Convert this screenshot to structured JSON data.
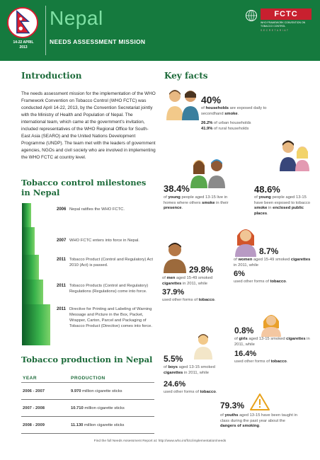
{
  "header": {
    "title": "Nepal",
    "subtitle": "NEEDS ASSESSMENT MISSION",
    "date_line1": "14-22 APRIL",
    "date_line2": "2013",
    "fctc_logo": "FCTC",
    "fctc_sub": "WHO FRAMEWORK CONVENTION ON TOBACCO CONTROL",
    "fctc_sec": "SECRETARIAT",
    "colors": {
      "brand_green": "#157a3e",
      "title_green": "#7fe0a4",
      "fctc_red": "#c8202f"
    }
  },
  "intro": {
    "heading": "Introduction",
    "text": "The needs assessment mission for the implementation of the WHO Framework Convention on Tobacco Control (WHO FCTC) was conducted April 14-22, 2013, by the Convention Secretariat jointly with the Ministry of Health and Population of Nepal. The international team, which came at the government's invitation, included representatives of the WHO Regional Office for South-East Asia (SEARO) and the United Nations Development Programme (UNDP). The team met with the leaders of government agencies, NGOs and civil society who are involved in implementing the WHO FCTC at country level."
  },
  "milestones": {
    "heading": "Tobacco control milestones in Nepal",
    "items": [
      {
        "year": "2006",
        "text": "Nepal ratifies the WHO FCTC."
      },
      {
        "year": "2007",
        "text": "WHO FCTC enters into force in Nepal."
      },
      {
        "year": "2011",
        "text": "Tobacco Product (Control and Regulatory) Act 2010 (Act) is passed."
      },
      {
        "year": "2011",
        "text": "Tobacco Products (Control and Regulatory) Regulations (Regulations) come into force."
      },
      {
        "year": "2011",
        "text": "Directive for Printing and Labeling of Warning Message and Picture in the Box, Packet, Wrapper, Carton, Parcel and Packaging of Tobacco Product (Directive) comes into force."
      }
    ]
  },
  "production": {
    "heading": "Tobacco production in Nepal",
    "col_year": "YEAR",
    "col_production": "PRODUCTION",
    "rows": [
      {
        "year": "2006 - 2007",
        "value": "9.970",
        "unit": "million cigarette sticks"
      },
      {
        "year": "2007 - 2008",
        "value": "10.710",
        "unit": "million cigarette sticks"
      },
      {
        "year": "2008 - 2009",
        "value": "11.130",
        "unit": "million cigarette sticks"
      }
    ]
  },
  "keyfacts": {
    "heading": "Key facts",
    "f1": {
      "value": "40%",
      "pre": "of ",
      "bold": "households",
      "post": " are exposed daily to secondhand ",
      "bold2": "smoke",
      "end": ".",
      "line2a": "26.2%",
      "line2b": " of urban households",
      "line3a": "41.9%",
      "line3b": " of rural households"
    },
    "f2": {
      "value": "48.6%",
      "text_a": "of ",
      "bold_a": "young",
      "text_b": " people aged 13-15 have been exposed to tobacco ",
      "bold_b": "smoke",
      "text_c": " in ",
      "bold_c": "enclosed public places",
      "end": "."
    },
    "f3": {
      "value": "38.4%",
      "text_a": "of ",
      "bold_a": "young",
      "text_b": " people aged 13-15 live in homes where others ",
      "bold_b": "smoke",
      "text_c": " in their ",
      "bold_c": "presence",
      "end": "."
    },
    "f4": {
      "value": "8.7%",
      "text_a": "of ",
      "bold_a": "women",
      "text_b": " aged 15-49 smoked ",
      "bold_b": "cigarettes",
      "text_c": " in 2011, while",
      "value2": "6%",
      "text2": "used other forms of ",
      "bold2": "tobacco",
      "end": "."
    },
    "f5": {
      "value": "29.8%",
      "text_a": "of ",
      "bold_a": "men",
      "text_b": " aged 15-49 smoked ",
      "bold_b": "cigarettes",
      "text_c": " in 2011, while",
      "value2": "37.9%",
      "text2": "used other forms of ",
      "bold2": "tobacco",
      "end": "."
    },
    "f6": {
      "value": "0.8%",
      "text_a": "of ",
      "bold_a": "girls",
      "text_b": " aged 13-15 smoked ",
      "bold_b": "cigarettes",
      "text_c": " in 2011, while",
      "value2": "16.4%",
      "text2": "used other forms of ",
      "bold2": "tobacco",
      "end": "."
    },
    "f7": {
      "value": "5.5%",
      "text_a": "of ",
      "bold_a": "boys",
      "text_b": " aged 13-15 smoked ",
      "bold_b": "cigarettes",
      "text_c": " in 2011, while",
      "value2": "24.6%",
      "text2": "used other forms of ",
      "bold2": "tobacco",
      "end": "."
    },
    "f8": {
      "value": "79.3%",
      "text_a": "of ",
      "bold_a": "youths",
      "text_b": " aged 13-15 have been taught in class during the past year about the ",
      "bold_b": "dangers of smoking",
      "end": "."
    }
  },
  "footer": "Find the full Needs Assessment Report at: http://www.who.int/fctc/implementation/needs"
}
